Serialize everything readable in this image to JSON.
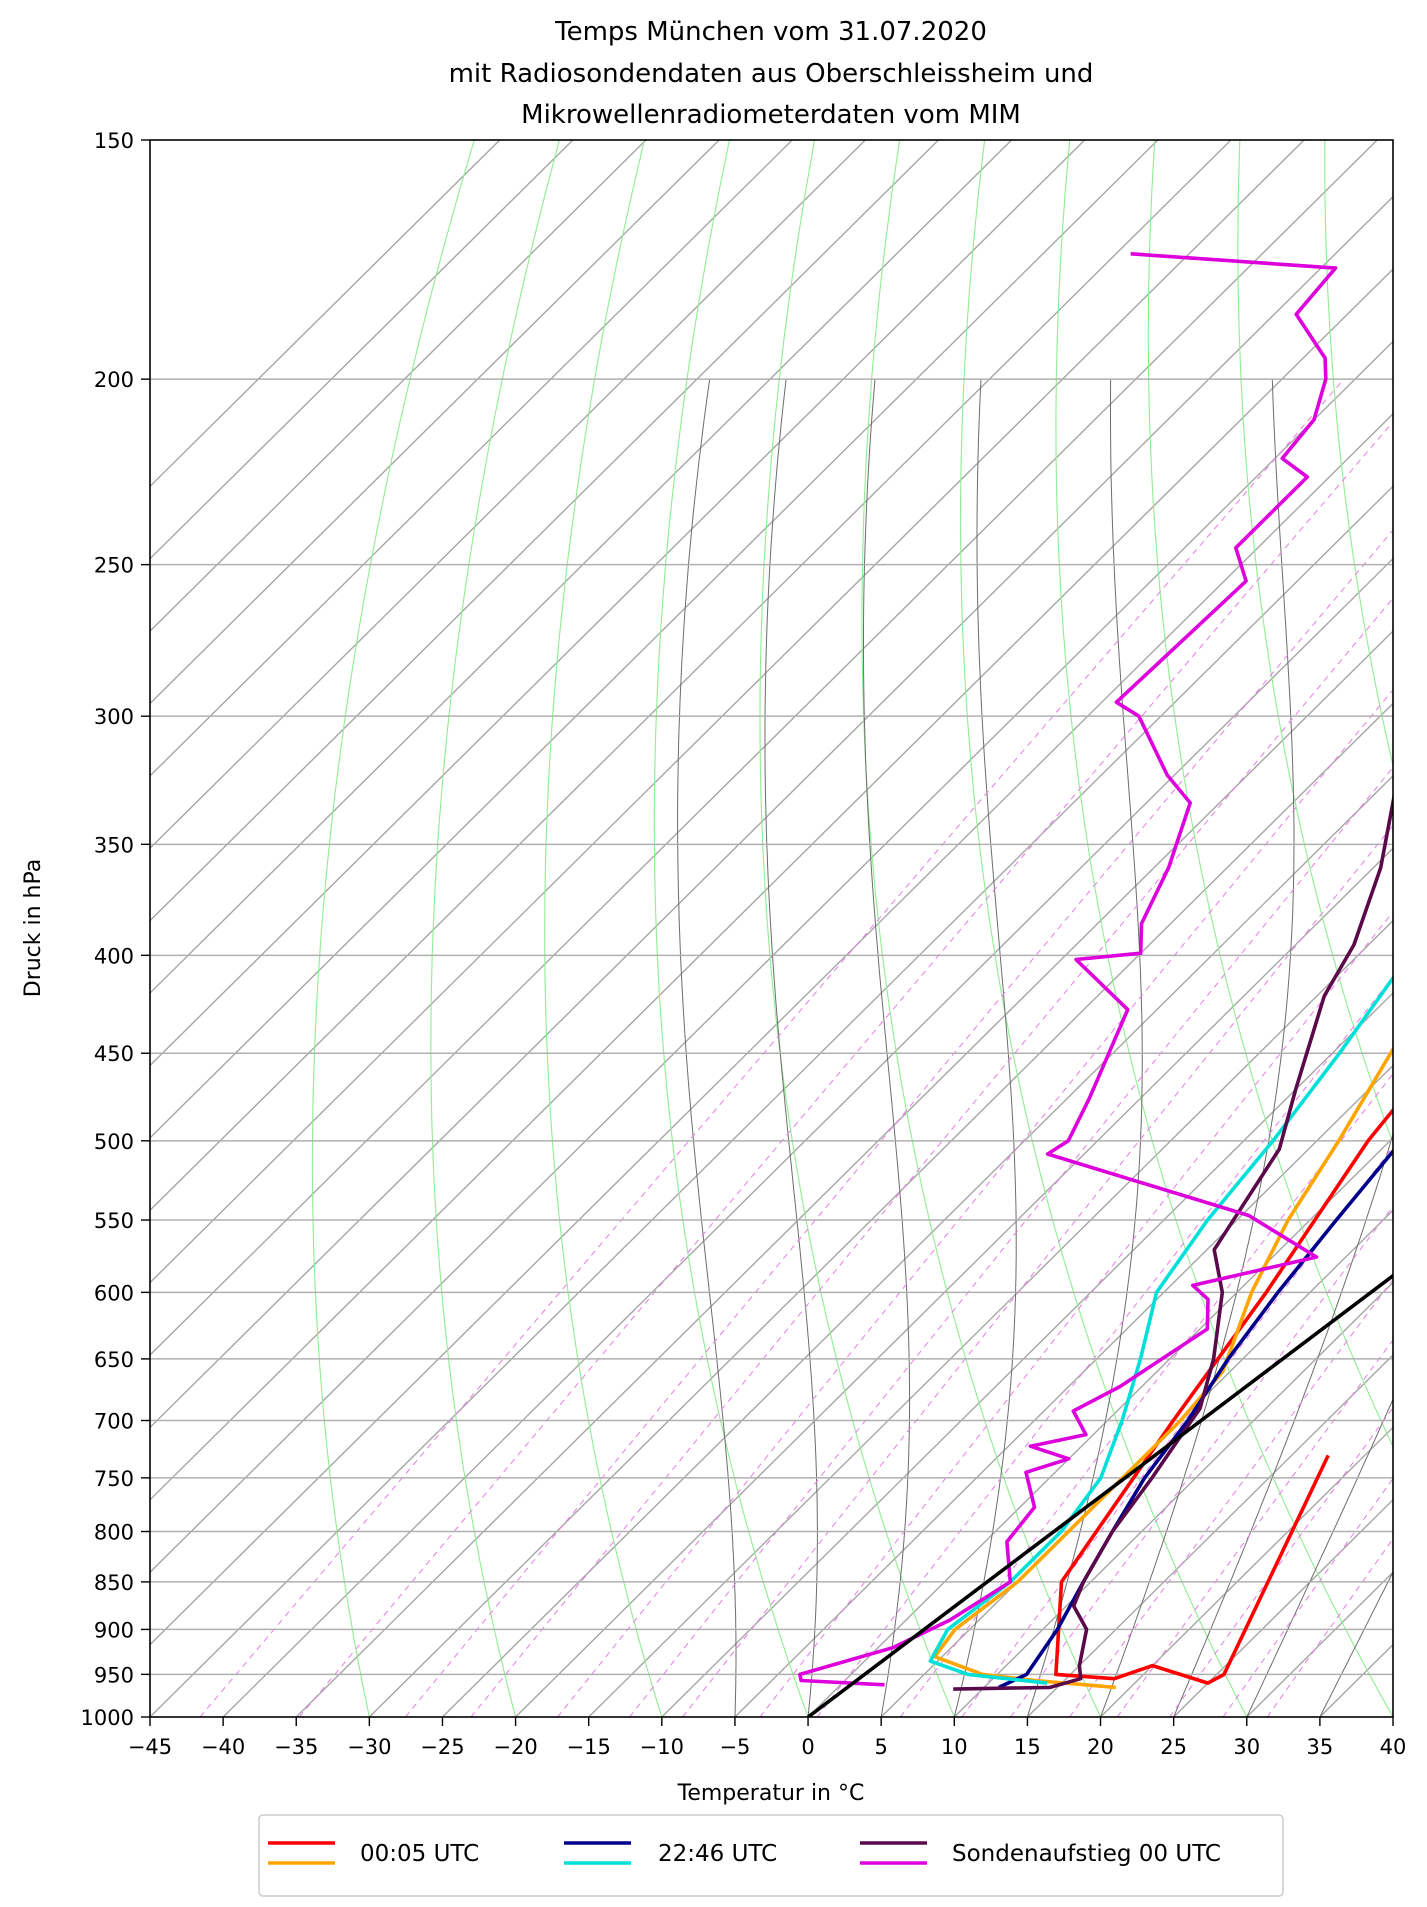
{
  "chart_data": {
    "type": "line",
    "title_lines": [
      "Temps München vom 31.07.2020",
      "mit Radiosondendaten aus Oberschleissheim und",
      "Mikrowellenradiometerdaten vom MIM"
    ],
    "xlabel": "Temperatur in °C",
    "ylabel": "Druck in hPa",
    "xlim": [
      -45,
      40
    ],
    "ylim": [
      1000,
      150
    ],
    "y_scale": "log",
    "skew_t": true,
    "grid": true,
    "x_ticks": [
      -45,
      -40,
      -35,
      -30,
      -25,
      -20,
      -15,
      -10,
      -5,
      0,
      5,
      10,
      15,
      20,
      25,
      30,
      35,
      40
    ],
    "x_tick_labels": [
      "−45",
      "−40",
      "−35",
      "−30",
      "−25",
      "−20",
      "−15",
      "−10",
      "−5",
      "0",
      "5",
      "10",
      "15",
      "20",
      "25",
      "30",
      "35",
      "40"
    ],
    "y_ticks": [
      150,
      200,
      250,
      300,
      350,
      400,
      450,
      500,
      550,
      600,
      650,
      700,
      750,
      800,
      850,
      900,
      950,
      1000
    ],
    "y_tick_labels": [
      "150",
      "200",
      "250",
      "300",
      "350",
      "400",
      "450",
      "500",
      "550",
      "600",
      "650",
      "700",
      "750",
      "800",
      "850",
      "900",
      "950",
      "1000"
    ],
    "legend_position": "bottom",
    "legend": [
      {
        "label": "00:05 UTC",
        "colors": [
          "#ff0000",
          "#ffa500"
        ]
      },
      {
        "label": "22:46 UTC",
        "colors": [
          "#00008b",
          "#00e0d8"
        ]
      },
      {
        "label": "Sondenaufstieg 00 UTC",
        "colors": [
          "#5a0a4a",
          "#dd00dd"
        ]
      }
    ],
    "series": [
      {
        "role": "00:05 UTC temperature",
        "color": "#ff0000",
        "points": [
          [
            -10.5,
            255
          ],
          [
            -8,
            300
          ],
          [
            -4,
            400
          ],
          [
            -1.5,
            500
          ],
          [
            2.0,
            600
          ],
          [
            4.5,
            700
          ],
          [
            8.0,
            850
          ],
          [
            14.0,
            950
          ],
          [
            18.3,
            955
          ],
          [
            20.0,
            940
          ],
          [
            25.0,
            960
          ],
          [
            25.5,
            950
          ],
          [
            17.5,
            730
          ]
        ]
      },
      {
        "role": "00:05 UTC dewpoint",
        "color": "#ffa500",
        "points": [
          [
            -18.2,
            255
          ],
          [
            -15,
            300
          ],
          [
            -12,
            350
          ],
          [
            -9,
            400
          ],
          [
            -6,
            450
          ],
          [
            -3.5,
            500
          ],
          [
            -1.5,
            550
          ],
          [
            1.0,
            600
          ],
          [
            4.5,
            660
          ],
          [
            5.0,
            700
          ],
          [
            5.0,
            800
          ],
          [
            5.0,
            850
          ],
          [
            4.0,
            900
          ],
          [
            4.5,
            930
          ],
          [
            9.0,
            950
          ],
          [
            13.0,
            957
          ],
          [
            19.0,
            965
          ]
        ]
      },
      {
        "role": "22:46 UTC temperature",
        "color": "#00008b",
        "points": [
          [
            -10.5,
            255
          ],
          [
            -8.0,
            300
          ],
          [
            -5.2,
            350
          ],
          [
            -3.0,
            400
          ],
          [
            -1.0,
            450
          ],
          [
            0.8,
            500
          ],
          [
            1.8,
            550
          ],
          [
            2.8,
            600
          ],
          [
            4.0,
            650
          ],
          [
            5.5,
            700
          ],
          [
            6.5,
            750
          ],
          [
            8.0,
            800
          ],
          [
            9.5,
            850
          ],
          [
            11.0,
            900
          ],
          [
            12.0,
            950
          ],
          [
            11.0,
            965
          ]
        ]
      },
      {
        "role": "22:46 UTC dewpoint",
        "color": "#00e0d8",
        "points": [
          [
            -19.5,
            255
          ],
          [
            -16.5,
            300
          ],
          [
            -14.0,
            350
          ],
          [
            -11.5,
            400
          ],
          [
            -9.5,
            450
          ],
          [
            -8.0,
            500
          ],
          [
            -7.0,
            550
          ],
          [
            -5.5,
            600
          ],
          [
            -2.0,
            650
          ],
          [
            1.0,
            700
          ],
          [
            3.5,
            750
          ],
          [
            4.5,
            800
          ],
          [
            4.5,
            850
          ],
          [
            3.5,
            900
          ],
          [
            4.5,
            935
          ],
          [
            8.0,
            950
          ],
          [
            14.0,
            960
          ]
        ]
      },
      {
        "role": "Sondenaufstieg 00 UTC temperature",
        "color": "#5a0a4a",
        "points": [
          [
            -46.5,
            150
          ],
          [
            -48.0,
            170
          ],
          [
            -46.5,
            180
          ],
          [
            -45.5,
            200
          ],
          [
            -42.0,
            220
          ],
          [
            -38.5,
            240
          ],
          [
            -34.0,
            260
          ],
          [
            -29.0,
            290
          ],
          [
            -25.0,
            320
          ],
          [
            -19.5,
            360
          ],
          [
            -16.0,
            395
          ],
          [
            -14.5,
            420
          ],
          [
            -10.0,
            470
          ],
          [
            -7.0,
            505
          ],
          [
            -4.5,
            570
          ],
          [
            -1.0,
            600
          ],
          [
            3.0,
            650
          ],
          [
            5.5,
            690
          ],
          [
            6.0,
            710
          ],
          [
            7.0,
            750
          ],
          [
            8.0,
            800
          ],
          [
            9.5,
            850
          ],
          [
            10.5,
            875
          ],
          [
            13.0,
            900
          ],
          [
            15.0,
            940
          ],
          [
            16.0,
            955
          ],
          [
            14.5,
            965
          ],
          [
            8.0,
            967
          ]
        ]
      },
      {
        "role": "Sondenaufstieg 00 UTC dewpoint",
        "color": "#dd00dd",
        "points": [
          [
            -79.0,
            172
          ],
          [
            -64.0,
            175
          ],
          [
            -63.5,
            185
          ],
          [
            -58.5,
            195
          ],
          [
            -57.0,
            200
          ],
          [
            -55.0,
            210
          ],
          [
            -54.5,
            220
          ],
          [
            -51.5,
            225
          ],
          [
            -51.5,
            245
          ],
          [
            -48.5,
            255
          ],
          [
            -49.0,
            295
          ],
          [
            -46.5,
            300
          ],
          [
            -40.5,
            322
          ],
          [
            -37.0,
            333
          ],
          [
            -34.0,
            360
          ],
          [
            -32.0,
            385
          ],
          [
            -30.0,
            399
          ],
          [
            -34.0,
            402
          ],
          [
            -27.0,
            427
          ],
          [
            -23.5,
            475
          ],
          [
            -22.0,
            500
          ],
          [
            -22.5,
            508
          ],
          [
            -4.5,
            547
          ],
          [
            3.0,
            575
          ],
          [
            -3.5,
            595
          ],
          [
            -1.5,
            605
          ],
          [
            0.5,
            627
          ],
          [
            -1.5,
            672
          ],
          [
            -3.0,
            692
          ],
          [
            -0.5,
            712
          ],
          [
            -3.5,
            722
          ],
          [
            0.0,
            733
          ],
          [
            -2.0,
            745
          ],
          [
            1.0,
            777
          ],
          [
            1.5,
            810
          ],
          [
            4.5,
            850
          ],
          [
            3.0,
            890
          ],
          [
            1.0,
            920
          ],
          [
            -3.5,
            950
          ],
          [
            -3.0,
            957
          ],
          [
            3.0,
            962
          ]
        ]
      },
      {
        "role": "reference line",
        "color": "#000000",
        "points": [
          [
            0,
            1000
          ],
          [
            28,
            210
          ]
        ]
      }
    ]
  }
}
